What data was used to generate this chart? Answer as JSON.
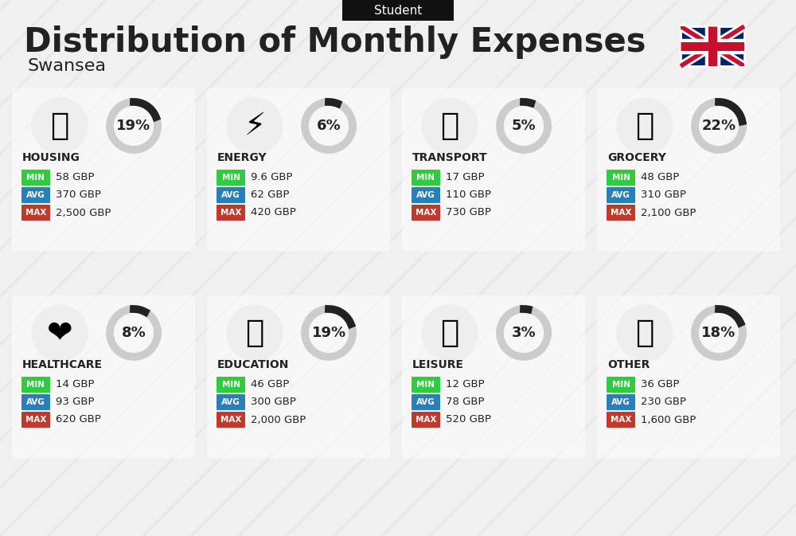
{
  "title": "Distribution of Monthly Expenses",
  "subtitle": "Swansea",
  "header_label": "Student",
  "bg_color": "#f0f0f0",
  "categories": [
    {
      "name": "HOUSING",
      "pct": 19,
      "emoji": "🏗",
      "min_val": "58 GBP",
      "avg_val": "370 GBP",
      "max_val": "2,500 GBP",
      "col": 0,
      "row": 0
    },
    {
      "name": "ENERGY",
      "pct": 6,
      "emoji": "⚡",
      "min_val": "9.6 GBP",
      "avg_val": "62 GBP",
      "max_val": "420 GBP",
      "col": 1,
      "row": 0
    },
    {
      "name": "TRANSPORT",
      "pct": 5,
      "emoji": "🚌",
      "min_val": "17 GBP",
      "avg_val": "110 GBP",
      "max_val": "730 GBP",
      "col": 2,
      "row": 0
    },
    {
      "name": "GROCERY",
      "pct": 22,
      "emoji": "🛒",
      "min_val": "48 GBP",
      "avg_val": "310 GBP",
      "max_val": "2,100 GBP",
      "col": 3,
      "row": 0
    },
    {
      "name": "HEALTHCARE",
      "pct": 8,
      "emoji": "❤",
      "min_val": "14 GBP",
      "avg_val": "93 GBP",
      "max_val": "620 GBP",
      "col": 0,
      "row": 1
    },
    {
      "name": "EDUCATION",
      "pct": 19,
      "emoji": "🎓",
      "min_val": "46 GBP",
      "avg_val": "300 GBP",
      "max_val": "2,000 GBP",
      "col": 1,
      "row": 1
    },
    {
      "name": "LEISURE",
      "pct": 3,
      "emoji": "🛍",
      "min_val": "12 GBP",
      "avg_val": "78 GBP",
      "max_val": "520 GBP",
      "col": 2,
      "row": 1
    },
    {
      "name": "OTHER",
      "pct": 18,
      "emoji": "💰",
      "min_val": "36 GBP",
      "avg_val": "230 GBP",
      "max_val": "1,600 GBP",
      "col": 3,
      "row": 1
    }
  ],
  "min_color": "#2ecc40",
  "avg_color": "#2980b9",
  "max_color": "#c0392b",
  "label_color": "#ffffff",
  "text_color": "#222222",
  "arc_color_filled": "#222222",
  "arc_color_empty": "#cccccc"
}
